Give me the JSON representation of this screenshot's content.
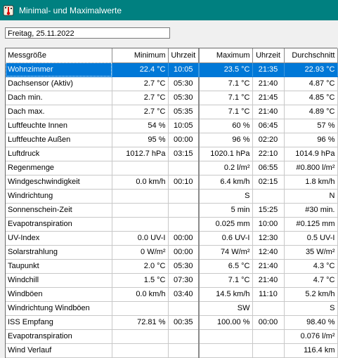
{
  "window": {
    "title": "Minimal- und Maximalwerte",
    "icon": "thermometer-icon"
  },
  "date_field": {
    "value": "Freitag, 25.11.2022"
  },
  "table": {
    "headers": {
      "name": "Messgröße",
      "min": "Minimum",
      "min_time": "Uhrzeit",
      "max": "Maximum",
      "max_time": "Uhrzeit",
      "avg": "Durchschnitt"
    },
    "selected_row": 0,
    "rows": [
      {
        "name": "Wohnzimmer",
        "min": "22.4 °C",
        "min_time": "10:05",
        "max": "23.5 °C",
        "max_time": "21:35",
        "avg": "22.93 °C"
      },
      {
        "name": "Dachsensor (Aktiv)",
        "min": "2.7 °C",
        "min_time": "05:30",
        "max": "7.1 °C",
        "max_time": "21:40",
        "avg": "4.87 °C"
      },
      {
        "name": "Dach min.",
        "min": "2.7 °C",
        "min_time": "05:30",
        "max": "7.1 °C",
        "max_time": "21:45",
        "avg": "4.85 °C"
      },
      {
        "name": "Dach max.",
        "min": "2.7 °C",
        "min_time": "05:35",
        "max": "7.1 °C",
        "max_time": "21:40",
        "avg": "4.89 °C"
      },
      {
        "name": "Luftfeuchte Innen",
        "min": "54 %",
        "min_time": "10:05",
        "max": "60 %",
        "max_time": "06:45",
        "avg": "57 %"
      },
      {
        "name": "Luftfeuchte Außen",
        "min": "95 %",
        "min_time": "00:00",
        "max": "96 %",
        "max_time": "02:20",
        "avg": "96 %"
      },
      {
        "name": "Luftdruck",
        "min": "1012.7 hPa",
        "min_time": "03:15",
        "max": "1020.1 hPa",
        "max_time": "22:10",
        "avg": "1014.9 hPa"
      },
      {
        "name": "Regenmenge",
        "min": "",
        "min_time": "",
        "max": "0.2 l/m²",
        "max_time": "06:55",
        "avg": "#0.800 l/m²"
      },
      {
        "name": "Windgeschwindigkeit",
        "min": "0.0 km/h",
        "min_time": "00:10",
        "max": "6.4 km/h",
        "max_time": "02:15",
        "avg": "1.8 km/h"
      },
      {
        "name": "Windrichtung",
        "min": "",
        "min_time": "",
        "max": "S",
        "max_time": "",
        "avg": "N"
      },
      {
        "name": "Sonnenschein-Zeit",
        "min": "",
        "min_time": "",
        "max": "5 min",
        "max_time": "15:25",
        "avg": "#30 min."
      },
      {
        "name": "Evapotranspiration",
        "min": "",
        "min_time": "",
        "max": "0.025 mm",
        "max_time": "10:00",
        "avg": "#0.125 mm"
      },
      {
        "name": "UV-Index",
        "min": "0.0 UV-I",
        "min_time": "00:00",
        "max": "0.6 UV-I",
        "max_time": "12:30",
        "avg": "0.5 UV-I"
      },
      {
        "name": "Solarstrahlung",
        "min": "0 W/m²",
        "min_time": "00:00",
        "max": "74 W/m²",
        "max_time": "12:40",
        "avg": "35 W/m²"
      },
      {
        "name": "Taupunkt",
        "min": "2.0 °C",
        "min_time": "05:30",
        "max": "6.5 °C",
        "max_time": "21:40",
        "avg": "4.3 °C"
      },
      {
        "name": "Windchill",
        "min": "1.5 °C",
        "min_time": "07:30",
        "max": "7.1 °C",
        "max_time": "21:40",
        "avg": "4.7 °C"
      },
      {
        "name": "Windböen",
        "min": "0.0 km/h",
        "min_time": "03:40",
        "max": "14.5 km/h",
        "max_time": "11:10",
        "avg": "5.2 km/h"
      },
      {
        "name": "Windrichtung Windböen",
        "min": "",
        "min_time": "",
        "max": "SW",
        "max_time": "",
        "avg": "S"
      },
      {
        "name": "ISS Empfang",
        "min": "72.81 %",
        "min_time": "00:35",
        "max": "100.00 %",
        "max_time": "00:00",
        "avg": "98.40 %"
      },
      {
        "name": "Evapotranspiration",
        "min": "",
        "min_time": "",
        "max": "",
        "max_time": "",
        "avg": "0.076 l/m²"
      },
      {
        "name": "Wind Verlauf",
        "min": "",
        "min_time": "",
        "max": "",
        "max_time": "",
        "avg": "116.4 km"
      }
    ]
  },
  "colors": {
    "titlebar": "#008080",
    "selection": "#0078d7"
  }
}
